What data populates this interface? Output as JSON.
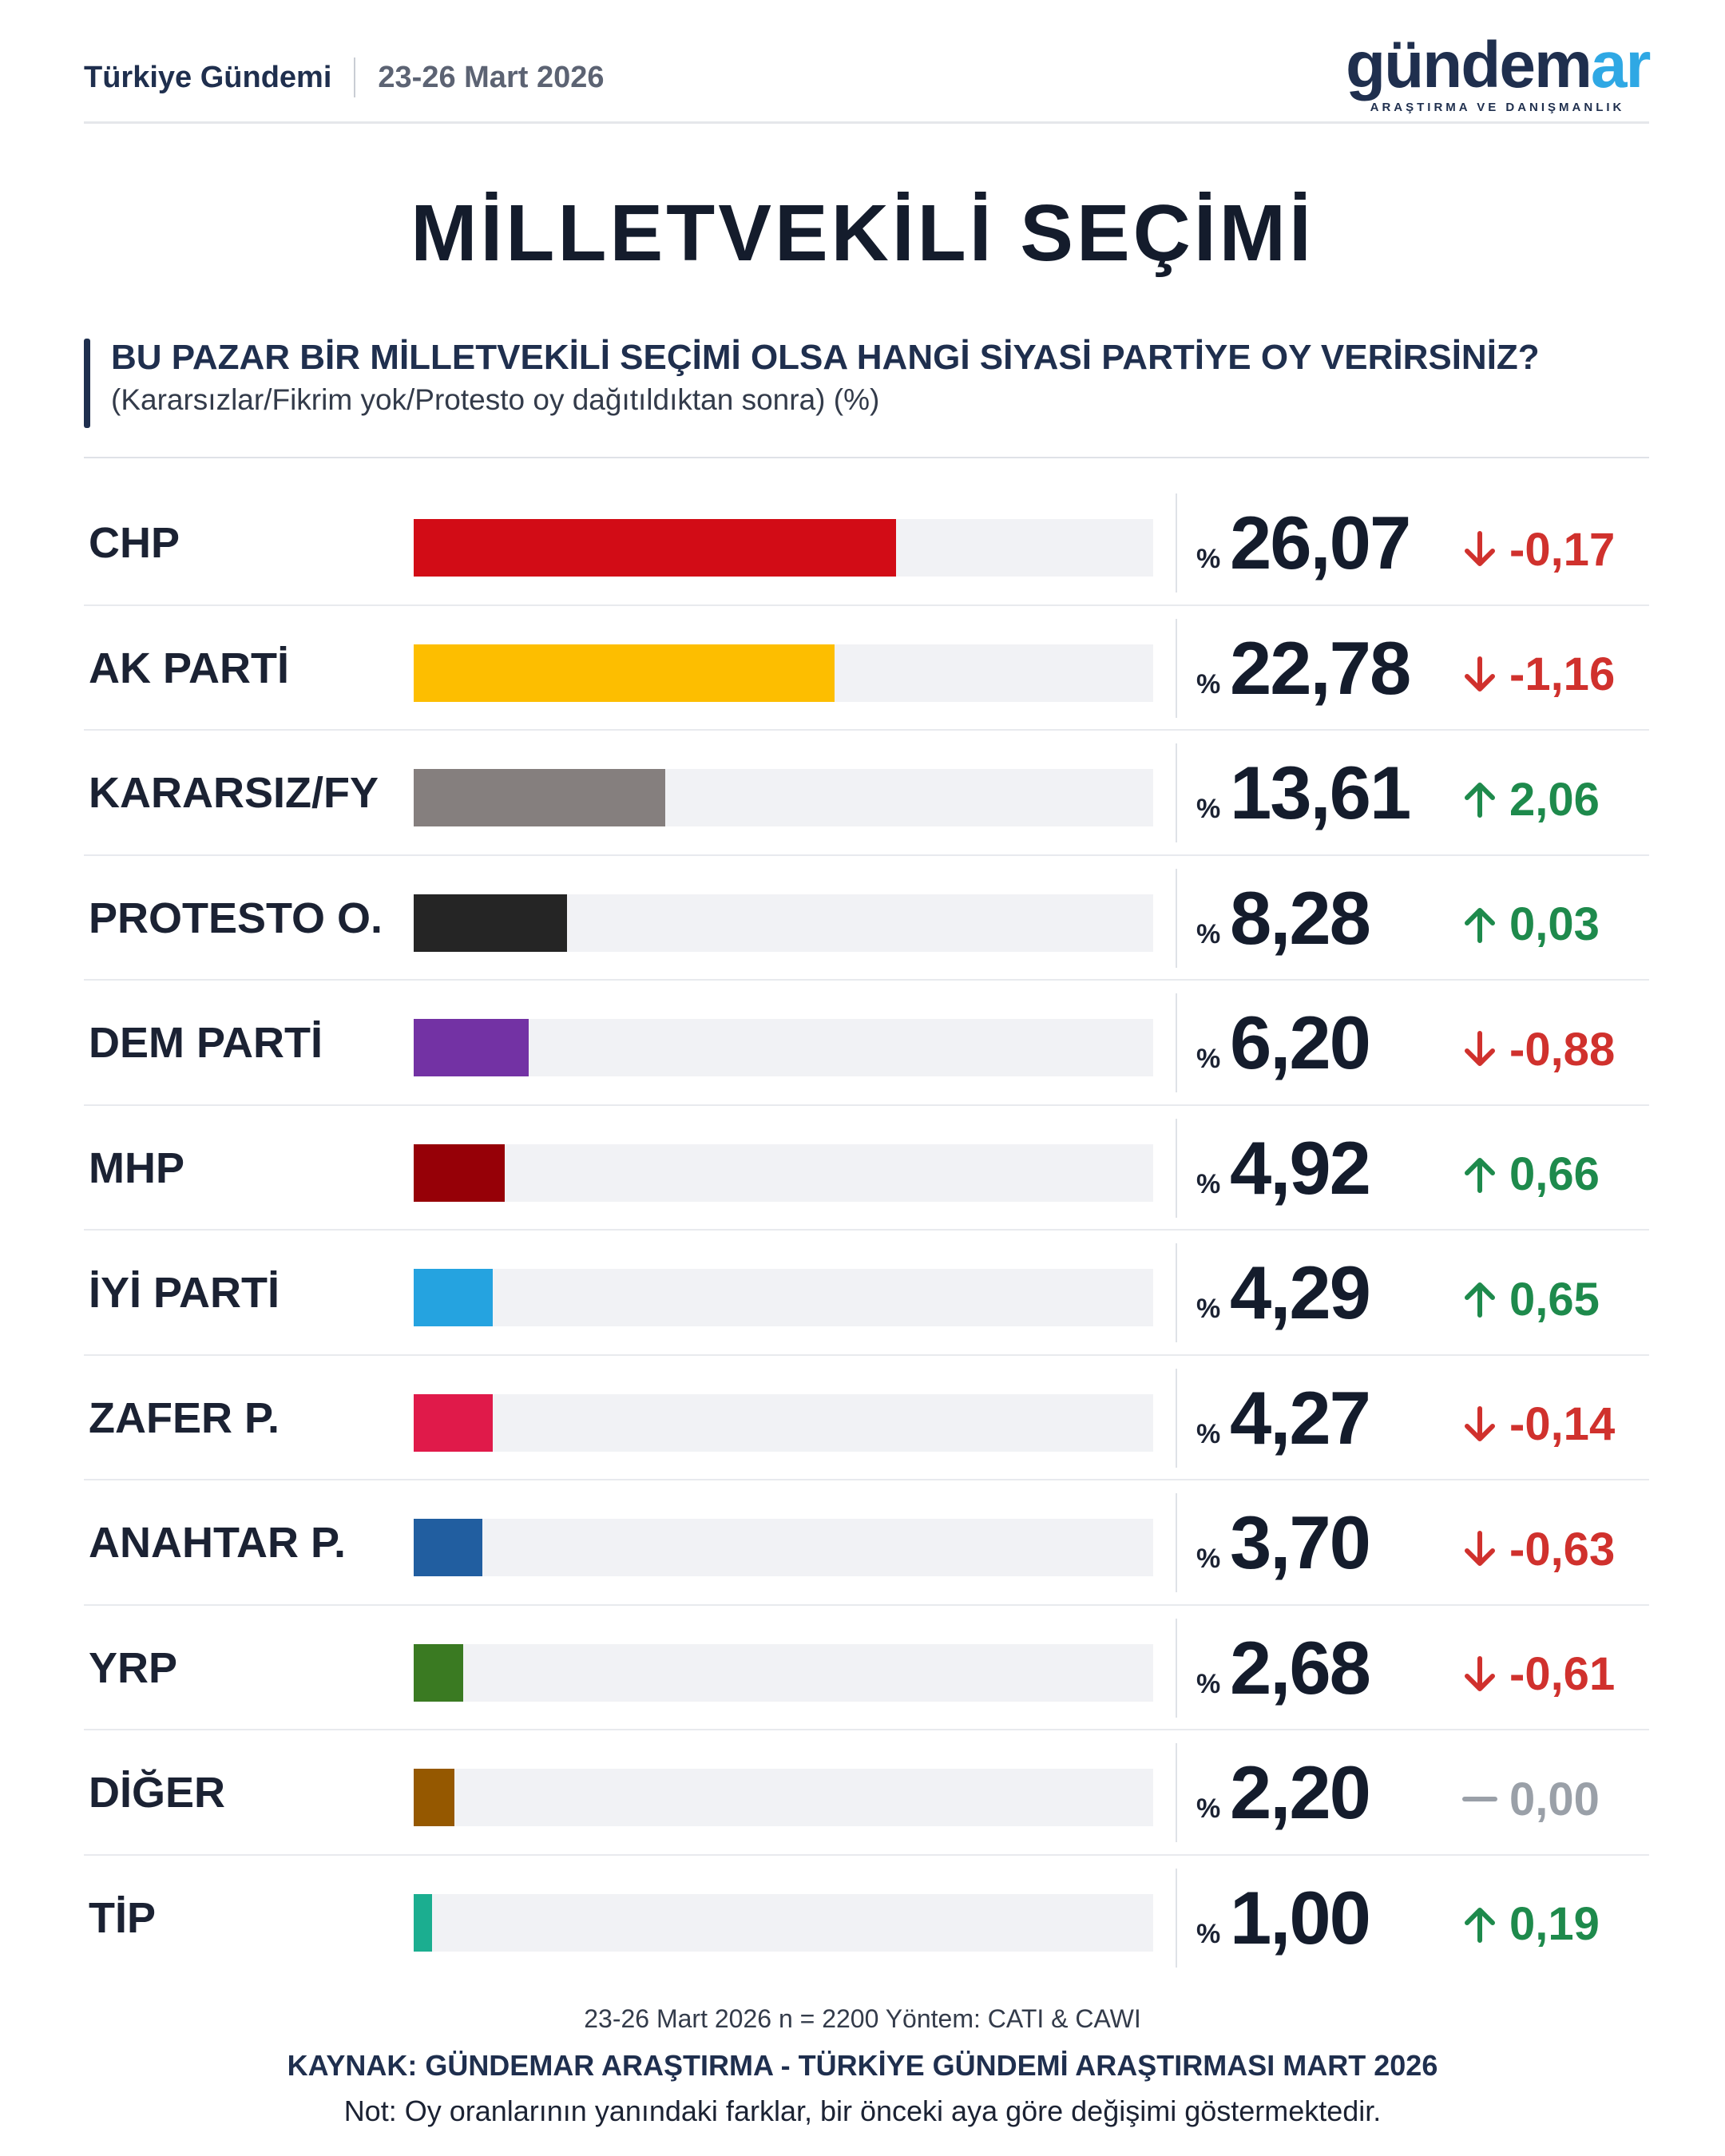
{
  "header": {
    "title": "Türkiye Gündemi",
    "date": "23-26 Mart 2026"
  },
  "logo": {
    "word_main": "gündem",
    "word_accent": "ar",
    "subtitle": "ARAŞTIRMA VE DANIŞMANLIK"
  },
  "main_title": "MİLLETVEKİLİ SEÇİMİ",
  "question": {
    "main": "BU PAZAR BİR MİLLETVEKİLİ SEÇİMİ OLSA HANGİ SİYASİ PARTİYE OY VERİRSİNİZ?",
    "sub": "(Kararsızlar/Fikrim yok/Protesto oy dağıtıldıktan sonra) (%)"
  },
  "percent_sign": "%",
  "colors": {
    "up": "#1e8a4c",
    "down": "#d0312d",
    "flat": "#9aa0a8"
  },
  "chart_data": {
    "type": "bar",
    "orientation": "horizontal",
    "title": "MİLLETVEKİLİ SEÇİMİ",
    "xlim": [
      0,
      40
    ],
    "unit": "%",
    "rows": [
      {
        "party": "CHP",
        "value": 26.07,
        "value_label": "26,07",
        "change": -0.17,
        "change_label": "-0,17",
        "trend": "down",
        "color": "#d20c16"
      },
      {
        "party": "AK PARTİ",
        "value": 22.78,
        "value_label": "22,78",
        "change": -1.16,
        "change_label": "-1,16",
        "trend": "down",
        "color": "#fdbe00"
      },
      {
        "party": "KARARSIZ/FY",
        "value": 13.61,
        "value_label": "13,61",
        "change": 2.06,
        "change_label": "2,06",
        "trend": "up",
        "color": "#857f7e"
      },
      {
        "party": "PROTESTO O.",
        "value": 8.28,
        "value_label": "8,28",
        "change": 0.03,
        "change_label": "0,03",
        "trend": "up",
        "color": "#252525"
      },
      {
        "party": "DEM PARTİ",
        "value": 6.2,
        "value_label": "6,20",
        "change": -0.88,
        "change_label": "-0,88",
        "trend": "down",
        "color": "#7332a4"
      },
      {
        "party": "MHP",
        "value": 4.92,
        "value_label": "4,92",
        "change": 0.66,
        "change_label": "0,66",
        "trend": "up",
        "color": "#960007"
      },
      {
        "party": "İYİ PARTİ",
        "value": 4.29,
        "value_label": "4,29",
        "change": 0.65,
        "change_label": "0,65",
        "trend": "up",
        "color": "#25a3e0"
      },
      {
        "party": "ZAFER P.",
        "value": 4.27,
        "value_label": "4,27",
        "change": -0.14,
        "change_label": "-0,14",
        "trend": "down",
        "color": "#e01a4a"
      },
      {
        "party": "ANAHTAR P.",
        "value": 3.7,
        "value_label": "3,70",
        "change": -0.63,
        "change_label": "-0,63",
        "trend": "down",
        "color": "#215ea0"
      },
      {
        "party": "YRP",
        "value": 2.68,
        "value_label": "2,68",
        "change": -0.61,
        "change_label": "-0,61",
        "trend": "down",
        "color": "#3a7a22"
      },
      {
        "party": "DİĞER",
        "value": 2.2,
        "value_label": "2,20",
        "change": 0.0,
        "change_label": "0,00",
        "trend": "flat",
        "color": "#955800"
      },
      {
        "party": "TİP",
        "value": 1.0,
        "value_label": "1,00",
        "change": 0.19,
        "change_label": "0,19",
        "trend": "up",
        "color": "#1bae90"
      }
    ]
  },
  "footer": {
    "method": "23-26 Mart 2026 n = 2200 Yöntem: CATI & CAWI",
    "source": "KAYNAK: GÜNDEMAR ARAŞTIRMA - TÜRKİYE GÜNDEMİ ARAŞTIRMASI MART 2026",
    "note": "Not: Oy oranlarının yanındaki farklar, bir önceki aya göre değişimi göstermektedir."
  }
}
